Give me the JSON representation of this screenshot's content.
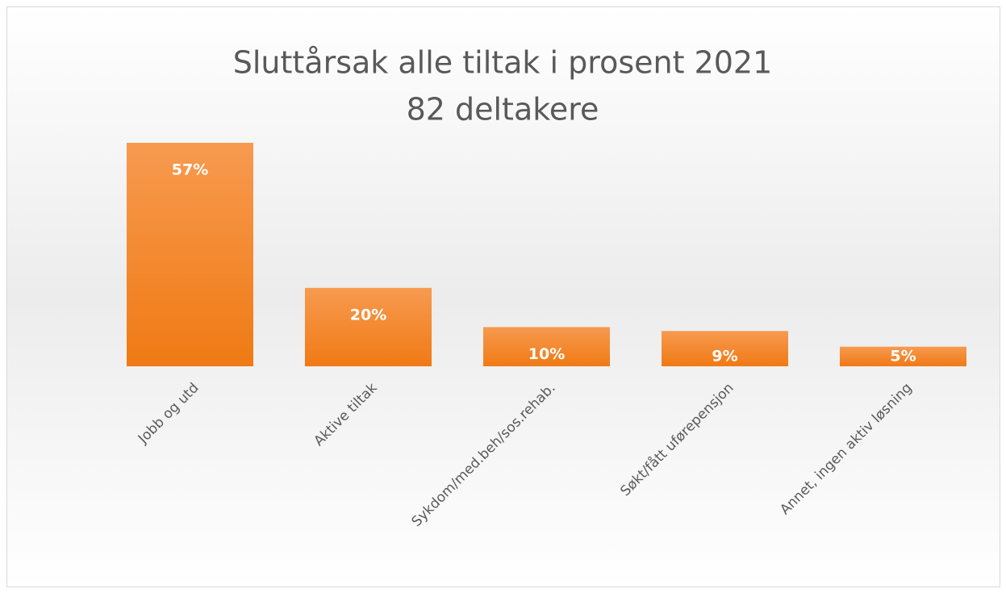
{
  "chart_data": {
    "type": "bar",
    "title": "Sluttårsak alle tiltak i prosent 2021",
    "subtitle": "82 deltakere",
    "categories": [
      "Jobb og utd",
      "Aktive tiltak",
      "Sykdom/med.beh/sos.rehab.",
      "Søkt/fått uførepensjon",
      "Annet, ingen aktiv løsning"
    ],
    "values": [
      57,
      20,
      10,
      9,
      5
    ],
    "value_labels": [
      "57%",
      "20%",
      "10%",
      "9%",
      "5%"
    ],
    "color": "#f58a2e"
  }
}
